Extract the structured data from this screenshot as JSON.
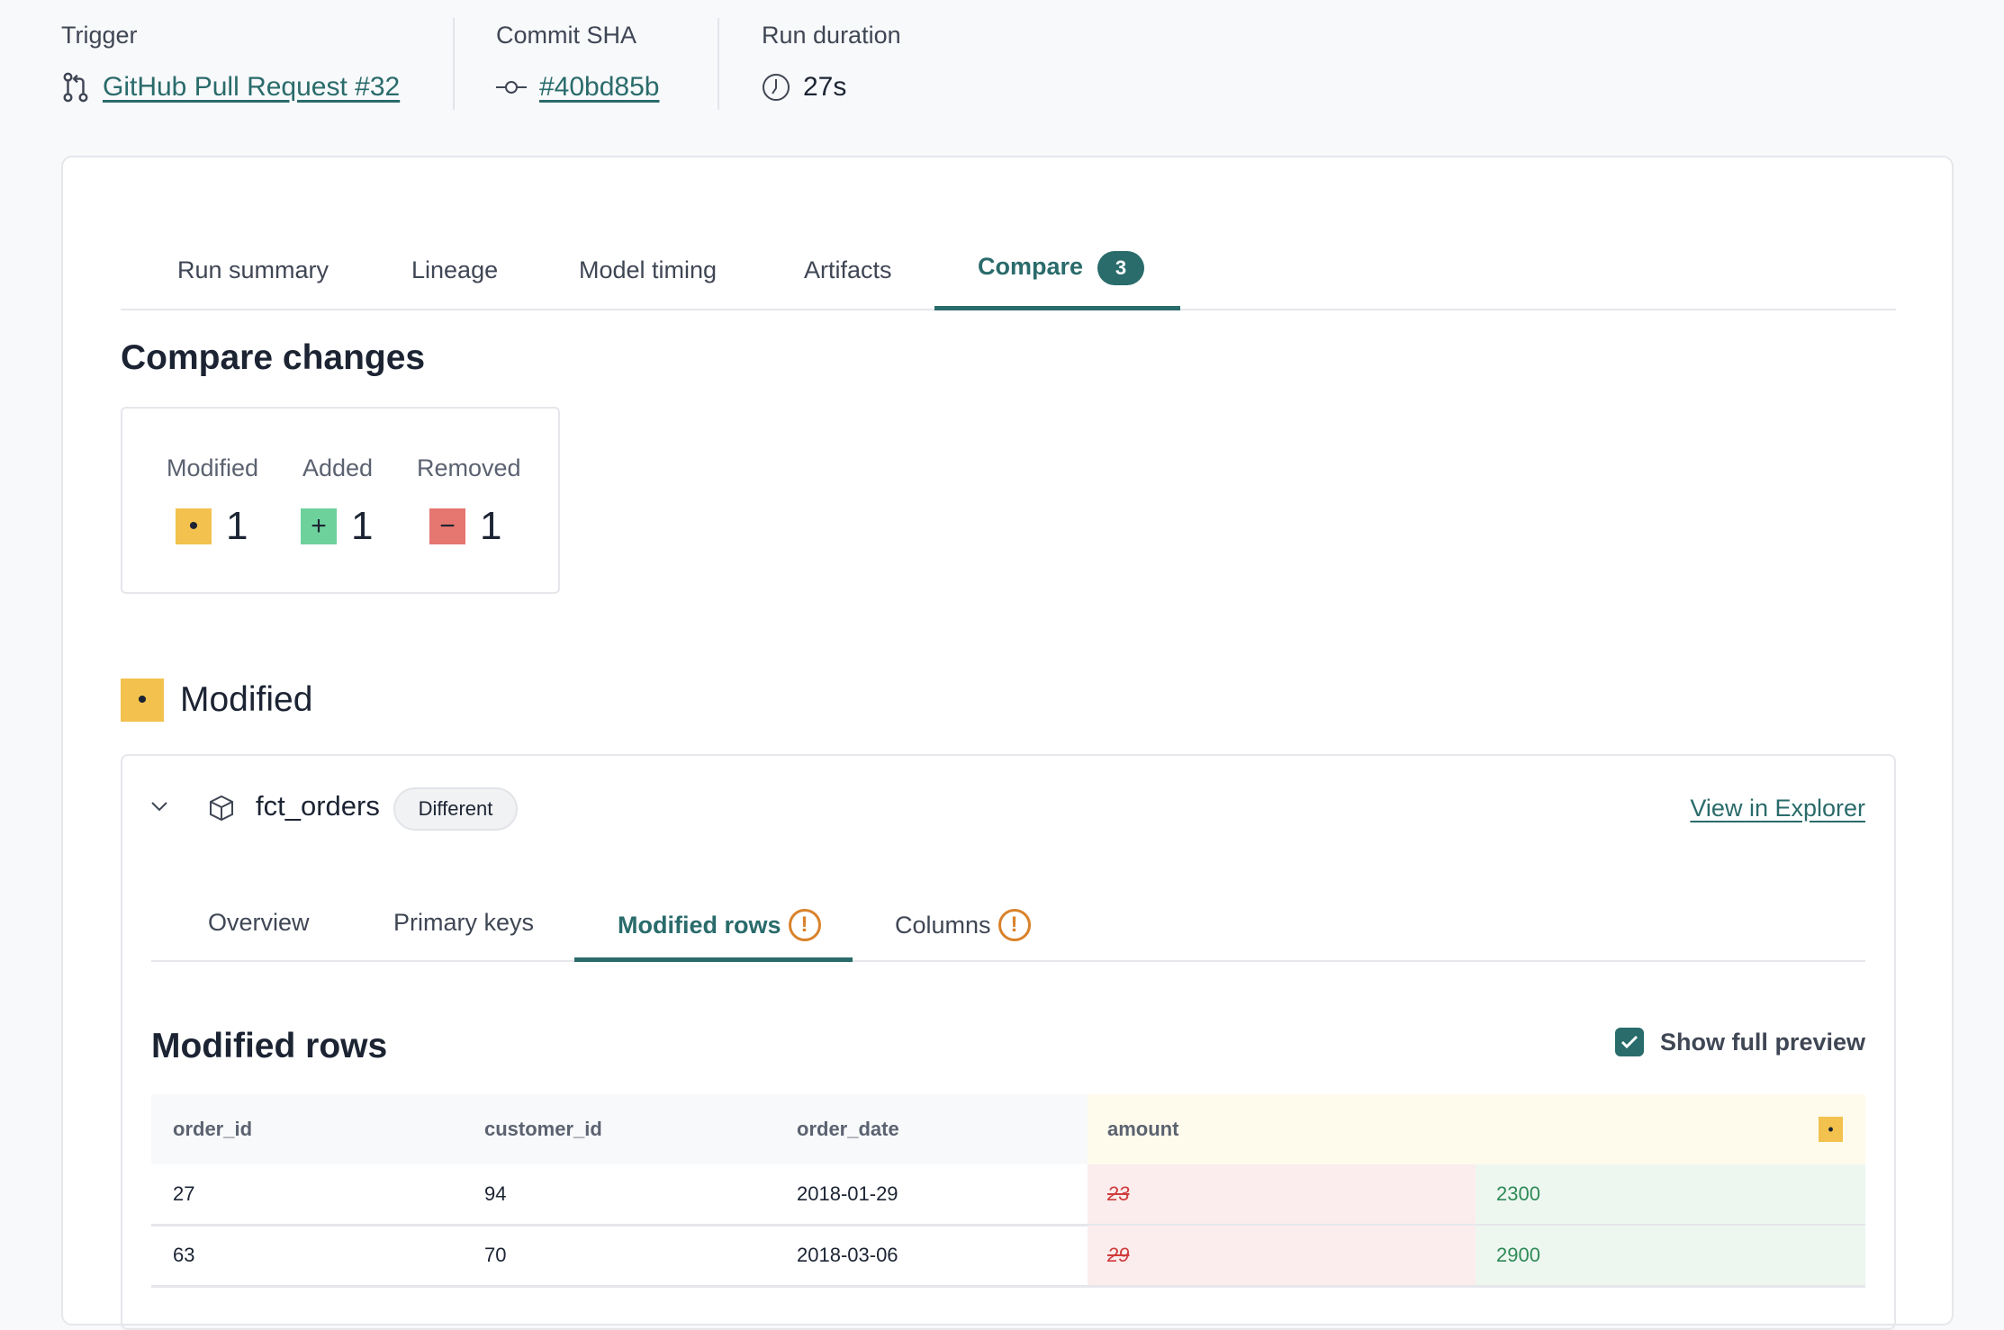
{
  "meta": {
    "trigger": {
      "label": "Trigger",
      "value": "GitHub Pull Request #32",
      "icon": "git-pull-request-icon"
    },
    "commit": {
      "label": "Commit SHA",
      "value": "#40bd85b",
      "icon": "git-commit-icon"
    },
    "duration": {
      "label": "Run duration",
      "value": "27s",
      "icon": "clock-icon"
    }
  },
  "tabs": [
    {
      "label": "Run summary"
    },
    {
      "label": "Lineage"
    },
    {
      "label": "Model timing"
    },
    {
      "label": "Artifacts"
    },
    {
      "label": "Compare",
      "badge": "3",
      "active": true
    }
  ],
  "compare": {
    "title": "Compare changes",
    "summary": [
      {
        "label": "Modified",
        "symbol": "•",
        "count": "1"
      },
      {
        "label": "Added",
        "symbol": "+",
        "count": "1"
      },
      {
        "label": "Removed",
        "symbol": "−",
        "count": "1"
      }
    ],
    "section_title": "Modified",
    "section_symbol": "•"
  },
  "model": {
    "name": "fct_orders",
    "status": "Different",
    "view_link": "View in Explorer",
    "tabs": [
      {
        "label": "Overview"
      },
      {
        "label": "Primary keys"
      },
      {
        "label": "Modified rows",
        "warning": true,
        "active": true
      },
      {
        "label": "Columns",
        "warning": true
      }
    ],
    "panel_title": "Modified rows",
    "show_full_preview": {
      "label": "Show full preview",
      "checked": true
    },
    "table": {
      "columns": [
        "order_id",
        "customer_id",
        "order_date",
        "amount"
      ],
      "modified_marker": "•",
      "rows": [
        {
          "order_id": "27",
          "customer_id": "94",
          "order_date": "2018-01-29",
          "amount_old": "23",
          "amount_new": "2300"
        },
        {
          "order_id": "63",
          "customer_id": "70",
          "order_date": "2018-03-06",
          "amount_old": "29",
          "amount_new": "2900"
        }
      ]
    }
  },
  "colors": {
    "accent": "#2a6b6b",
    "modified": "#f2c14e",
    "added": "#6dd19c",
    "removed": "#e57670",
    "warning": "#d9822b"
  }
}
